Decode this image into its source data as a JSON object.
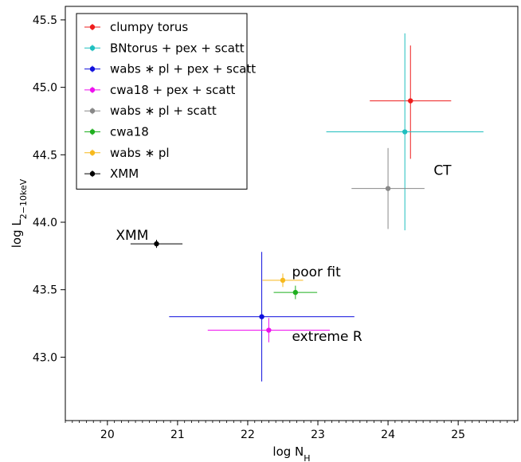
{
  "chart_data": {
    "type": "scatter",
    "xlabel": "log N",
    "xlabel_sub": "H",
    "ylabel": "log L",
    "ylabel_sub": "2−10keV",
    "xlim": [
      19.4,
      25.85
    ],
    "ylim": [
      42.53,
      45.6
    ],
    "x_ticks": [
      20,
      21,
      22,
      23,
      24,
      25
    ],
    "x_tick_labels": [
      "20",
      "21",
      "22",
      "23",
      "24",
      "25"
    ],
    "y_ticks": [
      43.0,
      43.5,
      44.0,
      44.5,
      45.0,
      45.5
    ],
    "y_tick_labels": [
      "43.0",
      "43.5",
      "44.0",
      "44.5",
      "45.0",
      "45.5"
    ],
    "grid": false,
    "legend_position": "top-left",
    "series": [
      {
        "name": "clumpy torus",
        "color": "#ee1c1c",
        "points": [
          {
            "x": 24.32,
            "y": 44.9,
            "xerr": [
              0.58,
              0.58
            ],
            "yerr": [
              0.43,
              0.41
            ]
          }
        ]
      },
      {
        "name": "BNtorus + pex + scatt",
        "color": "#1fbfbf",
        "points": [
          {
            "x": 24.24,
            "y": 44.67,
            "xerr": [
              1.12,
              1.12
            ],
            "yerr": [
              0.73,
              0.73
            ]
          }
        ]
      },
      {
        "name": "wabs ∗ pl + pex + scatt",
        "color": "#1010dd",
        "points": [
          {
            "x": 22.2,
            "y": 43.3,
            "xerr": [
              1.32,
              1.32
            ],
            "yerr": [
              0.48,
              0.48
            ]
          }
        ]
      },
      {
        "name": "cwa18 + pex + scatt",
        "color": "#ee10ee",
        "points": [
          {
            "x": 22.3,
            "y": 43.2,
            "xerr": [
              0.87,
              0.87
            ],
            "yerr": [
              0.09,
              0.09
            ]
          }
        ]
      },
      {
        "name": "wabs ∗ pl + scatt",
        "color": "#888888",
        "points": [
          {
            "x": 24.0,
            "y": 44.25,
            "xerr": [
              0.52,
              0.52
            ],
            "yerr": [
              0.3,
              0.3
            ]
          }
        ]
      },
      {
        "name": "cwa18",
        "color": "#1faf1f",
        "points": [
          {
            "x": 22.68,
            "y": 43.48,
            "xerr": [
              0.31,
              0.31
            ],
            "yerr": [
              0.05,
              0.05
            ]
          }
        ]
      },
      {
        "name": "wabs ∗ pl",
        "color": "#f7b91c",
        "points": [
          {
            "x": 22.5,
            "y": 43.57,
            "xerr": [
              0.29,
              0.29
            ],
            "yerr": [
              0.05,
              0.05
            ]
          }
        ]
      },
      {
        "name": "XMM",
        "color": "#000000",
        "points": [
          {
            "x": 20.7,
            "y": 43.84,
            "xerr": [
              0.37,
              0.37
            ],
            "yerr": [
              0.03,
              0.03
            ]
          }
        ]
      }
    ],
    "annotations": [
      {
        "text": "CT",
        "x": 24.65,
        "y": 44.35
      },
      {
        "text": "XMM",
        "x": 20.12,
        "y": 43.87
      },
      {
        "text": "poor fit",
        "x": 22.63,
        "y": 43.6
      },
      {
        "text": "extreme R",
        "x": 22.63,
        "y": 43.12
      }
    ]
  }
}
